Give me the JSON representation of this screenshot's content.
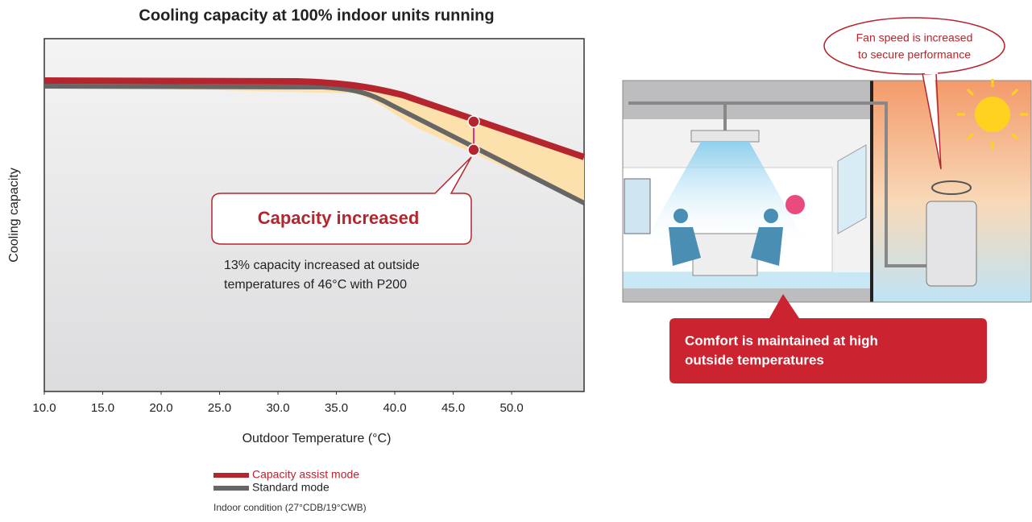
{
  "chart_data": {
    "type": "line",
    "title": "Cooling capacity at 100% indoor units running",
    "y_label": "Cooling capacity",
    "x_label": "Outdoor Temperature (°C)",
    "xlim": [
      10,
      56.2
    ],
    "xticks": [
      {
        "value": 10,
        "label": "10.0"
      },
      {
        "value": 15,
        "label": "15.0"
      },
      {
        "value": 20,
        "label": "20.0"
      },
      {
        "value": 25,
        "label": "25.0"
      },
      {
        "value": 30,
        "label": "30.0"
      },
      {
        "value": 35,
        "label": "35.0"
      },
      {
        "value": 40,
        "label": "40.0"
      },
      {
        "value": 45,
        "label": "45.0"
      },
      {
        "value": 50,
        "label": "50.0"
      }
    ],
    "series": [
      {
        "name": "Capacity assist mode",
        "color": "#b5252e"
      },
      {
        "name": "Standard mode",
        "color": "#666666"
      }
    ],
    "note": "Indoor condition  (27°CDB/19°CWB)",
    "callout": {
      "title": "Capacity increased",
      "lines": [
        "13% capacity increased at outside",
        "temperatures of 46°C with P200"
      ]
    }
  },
  "illustration": {
    "bubble": [
      "Fan speed is increased",
      "to secure performance"
    ],
    "comfort": [
      "Comfort is maintained at high",
      "outside temperatures"
    ]
  }
}
